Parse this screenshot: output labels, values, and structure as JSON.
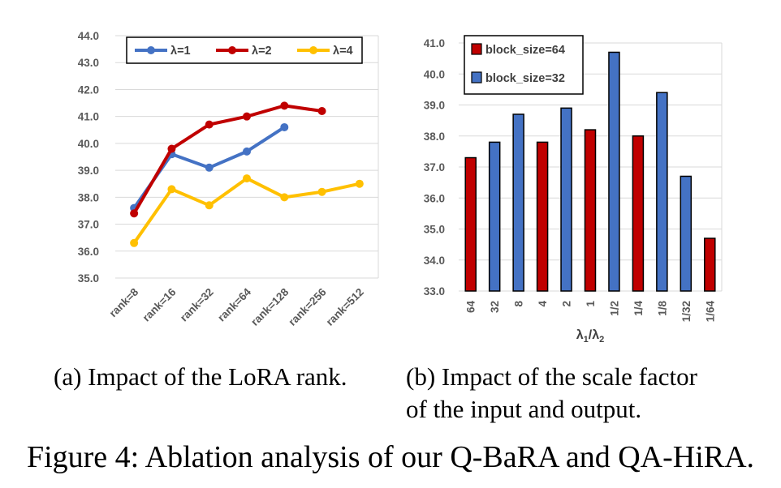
{
  "chart_data": [
    {
      "type": "line",
      "categories": [
        "rank=8",
        "rank=16",
        "rank=32",
        "rank=64",
        "rank=128",
        "rank=256",
        "rank=512"
      ],
      "series": [
        {
          "name": "λ=1",
          "color": "#4472C4",
          "values": [
            37.6,
            39.6,
            39.1,
            39.7,
            40.6,
            null,
            null
          ]
        },
        {
          "name": "λ=2",
          "color": "#C00000",
          "values": [
            37.4,
            39.8,
            40.7,
            41.0,
            41.4,
            41.2,
            null
          ]
        },
        {
          "name": "λ=4",
          "color": "#FFC000",
          "values": [
            36.3,
            38.3,
            37.7,
            38.7,
            38.0,
            38.2,
            38.5
          ]
        }
      ],
      "ylim": [
        35.0,
        44.0
      ],
      "yticks": [
        "35.0",
        "36.0",
        "37.0",
        "38.0",
        "39.0",
        "40.0",
        "41.0",
        "42.0",
        "43.0",
        "44.0"
      ],
      "grid": true,
      "legend": "top"
    },
    {
      "type": "bar",
      "categories": [
        "64",
        "32",
        "8",
        "4",
        "2",
        "1",
        "1/2",
        "1/4",
        "1/8",
        "1/32",
        "1/64"
      ],
      "values": [
        37.3,
        37.8,
        38.7,
        37.8,
        38.9,
        38.2,
        40.7,
        38.0,
        39.4,
        36.7,
        34.7
      ],
      "groups": [
        "block_size=64",
        "block_size=32",
        "block_size=32",
        "block_size=64",
        "block_size=32",
        "block_size=64",
        "block_size=32",
        "block_size=64",
        "block_size=32",
        "block_size=32",
        "block_size=64"
      ],
      "series": [
        {
          "name": "block_size=64",
          "color": "#C00000"
        },
        {
          "name": "block_size=32",
          "color": "#4472C4"
        }
      ],
      "xlabel_main": "λ",
      "xlabel_sub1": "1",
      "xlabel_sep": "/λ",
      "xlabel_sub2": "2",
      "ylim": [
        33.0,
        41.0
      ],
      "yticks": [
        "33.0",
        "34.0",
        "35.0",
        "36.0",
        "37.0",
        "38.0",
        "39.0",
        "40.0",
        "41.0"
      ],
      "grid": true,
      "legend": "top-left"
    }
  ],
  "captions": {
    "a": "(a) Impact of the LoRA rank.",
    "b_line1": "(b) Impact of the scale factor",
    "b_line2": "of the input and output.",
    "figure": "Figure 4: Ablation analysis of our Q-BaRA and QA-HiRA."
  }
}
